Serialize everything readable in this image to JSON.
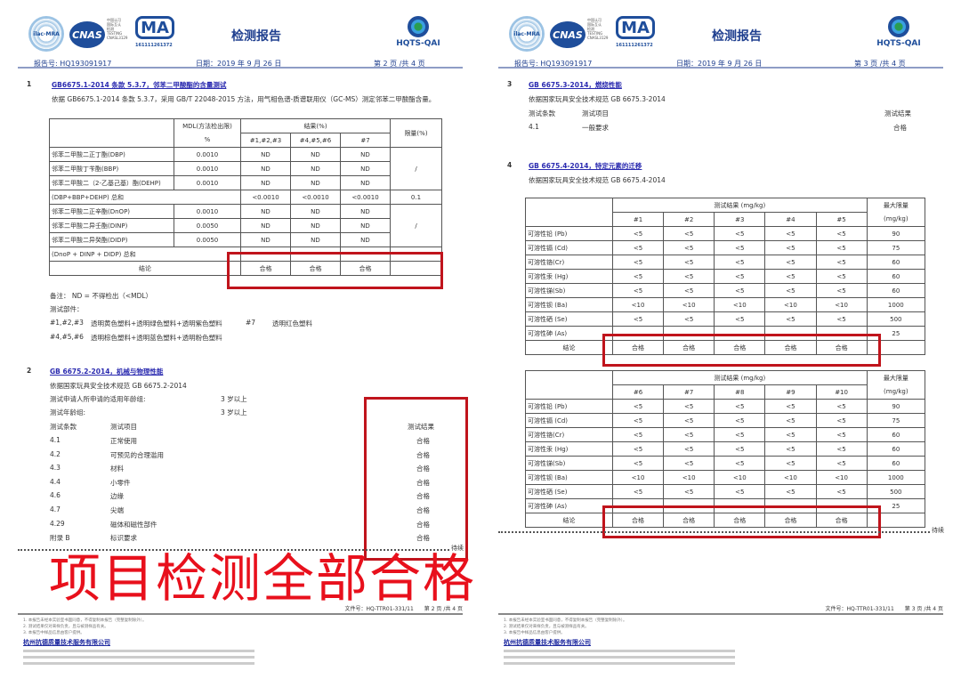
{
  "header": {
    "title": "检测报告",
    "cnas_text": "CNAS",
    "cnas_small": [
      "中国认可",
      "国际互认",
      "检测",
      "TESTING",
      "CNASL3129"
    ],
    "ma_text": "MA",
    "ma_number": "161111261372",
    "iaf_text": "ilac-MRA",
    "hqts_text": "HQTS-QAI",
    "report_no": "报告号: HQ193091917",
    "date": "日期：2019 年 9 月 26 日"
  },
  "page2": {
    "page_label": "第 2 页 /共 4 页",
    "sec1": {
      "num": "1",
      "title": "GB6675.1-2014  条款 5.3.7，邻苯二甲酸酯的含量测试",
      "desc": "依据 GB6675.1-2014 条款 5.3.7，采用 GB/T 22048-2015 方法，用气相色谱-质谱联用仪（GC-MS）测定邻苯二甲酸酯含量。",
      "table": {
        "h_mdl": "MDL(方法检出限)",
        "h_mdl_unit": "%",
        "h_result": "结果(%)",
        "h_limit": "限量(%)",
        "cols": [
          "#1,#2,#3",
          "#4,#5,#6",
          "#7"
        ],
        "rows": [
          {
            "name": "邻苯二甲酸二正丁酯(DBP)",
            "mdl": "0.0010",
            "v": [
              "ND",
              "ND",
              "ND"
            ]
          },
          {
            "name": "邻苯二甲酸丁苄酯(BBP)",
            "mdl": "0.0010",
            "v": [
              "ND",
              "ND",
              "ND"
            ]
          },
          {
            "name": "邻苯二甲酸二（2-乙基己基）酯(DEHP)",
            "mdl": "0.0010",
            "v": [
              "ND",
              "ND",
              "ND"
            ]
          },
          {
            "name": "(DBP+BBP+DEHP) 总和",
            "v": [
              "<0.0010",
              "<0.0010",
              "<0.0010"
            ],
            "limit": "0.1"
          },
          {
            "name": "邻苯二甲酸二正辛酯(DnOP)",
            "mdl": "0.0010",
            "v": [
              "ND",
              "ND",
              "ND"
            ]
          },
          {
            "name": "邻苯二甲酸二异壬酯(DINP)",
            "mdl": "0.0050",
            "v": [
              "ND",
              "ND",
              "ND"
            ]
          },
          {
            "name": "邻苯二甲酸二异癸酯(DIDP)",
            "mdl": "0.0050",
            "v": [
              "ND",
              "ND",
              "ND"
            ]
          },
          {
            "name": "(DnoP + DINP + DIDP) 总和",
            "v": [
              "",
              "",
              ""
            ],
            "limit": ""
          }
        ],
        "limit_a": "/",
        "limit_b": "/",
        "conclusion_label": "结论",
        "conclusion": [
          "合格",
          "合格",
          "合格"
        ]
      },
      "note": "备注：  ND = 不得检出（<MDL）",
      "parts_label": "测试部件：",
      "parts": [
        {
          "id": "#1,#2,#3",
          "desc": "透明黄色塑料+透明绿色塑料+透明紫色塑料",
          "id2": "#7",
          "desc2": "透明红色塑料"
        },
        {
          "id": "#4,#5,#6",
          "desc": "透明棕色塑料+透明蓝色塑料+透明粉色塑料"
        }
      ]
    },
    "sec2": {
      "num": "2",
      "title": "GB 6675.2-2014，机械与物理性能",
      "basis": "依据国家玩具安全技术规范 GB 6675.2-2014",
      "age_applied_label": "测试申请人所申请的适用年龄组:",
      "age_applied": "3 岁以上",
      "age_label": "测试年龄组:",
      "age": "3 岁以上",
      "h_clause": "测试条款",
      "h_item": "测试项目",
      "h_result": "测试结果",
      "rows": [
        [
          "4.1",
          "正常使用",
          "合格"
        ],
        [
          "4.2",
          "可预见的合理滥用",
          "合格"
        ],
        [
          "4.3",
          "材料",
          "合格"
        ],
        [
          "4.4",
          "小零件",
          "合格"
        ],
        [
          "4.6",
          "边缘",
          "合格"
        ],
        [
          "4.7",
          "尖端",
          "合格"
        ],
        [
          "4.29",
          "磁体和磁性部件",
          "合格"
        ],
        [
          "附录 B",
          "标识要求",
          "合格"
        ]
      ]
    },
    "continued": "待续",
    "overlay": "项目检测全部合格",
    "file_no": "文件号：HQ-TTR01-331/11",
    "foot_page": "第 2 页 /共 4 页"
  },
  "page3": {
    "page_label": "第 3 页 /共 4 页",
    "sec3": {
      "num": "3",
      "title": "GB 6675.3-2014，燃烧性能",
      "basis": "依据国家玩具安全技术规范 GB 6675.3-2014",
      "h_clause": "测试条款",
      "h_item": "测试项目",
      "h_result": "测试结果",
      "rows": [
        [
          "4.1",
          "一般要求",
          "合格"
        ]
      ]
    },
    "sec4": {
      "num": "4",
      "title": "GB 6675.4-2014，特定元素的迁移",
      "basis": "依据国家玩具安全技术规范 GB 6675.4-2014",
      "h_result": "测试结果 (mg/kg)",
      "h_limit": "最大限量",
      "h_limit_unit": "(mg/kg)",
      "conclusion_label": "结论",
      "elements": [
        "可溶性铅 (Pb)",
        "可溶性镉 (Cd)",
        "可溶性铬(Cr)",
        "可溶性汞 (Hg)",
        "可溶性锑(Sb)",
        "可溶性钡 (Ba)",
        "可溶性硒 (Se)",
        "可溶性砷 (As)"
      ],
      "limits": [
        "90",
        "75",
        "60",
        "60",
        "60",
        "1000",
        "500",
        "25"
      ],
      "tables": [
        {
          "cols": [
            "#1",
            "#2",
            "#3",
            "#4",
            "#5"
          ],
          "values": [
            [
              "<5",
              "<5",
              "<5",
              "<5",
              "<5"
            ],
            [
              "<5",
              "<5",
              "<5",
              "<5",
              "<5"
            ],
            [
              "<5",
              "<5",
              "<5",
              "<5",
              "<5"
            ],
            [
              "<5",
              "<5",
              "<5",
              "<5",
              "<5"
            ],
            [
              "<5",
              "<5",
              "<5",
              "<5",
              "<5"
            ],
            [
              "<10",
              "<10",
              "<10",
              "<10",
              "<10"
            ],
            [
              "<5",
              "<5",
              "<5",
              "<5",
              "<5"
            ],
            [
              "",
              "",
              "",
              "",
              ""
            ]
          ],
          "conclusion": [
            "合格",
            "合格",
            "合格",
            "合格",
            "合格"
          ]
        },
        {
          "cols": [
            "#6",
            "#7",
            "#8",
            "#9",
            "#10"
          ],
          "values": [
            [
              "<5",
              "<5",
              "<5",
              "<5",
              "<5"
            ],
            [
              "<5",
              "<5",
              "<5",
              "<5",
              "<5"
            ],
            [
              "<5",
              "<5",
              "<5",
              "<5",
              "<5"
            ],
            [
              "<5",
              "<5",
              "<5",
              "<5",
              "<5"
            ],
            [
              "<5",
              "<5",
              "<5",
              "<5",
              "<5"
            ],
            [
              "<10",
              "<10",
              "<10",
              "<10",
              "<10"
            ],
            [
              "<5",
              "<5",
              "<5",
              "<5",
              "<5"
            ],
            [
              "",
              "",
              "",
              "",
              ""
            ]
          ],
          "conclusion": [
            "合格",
            "合格",
            "合格",
            "合格",
            "合格"
          ]
        }
      ]
    },
    "continued": "待续",
    "file_no": "文件号：HQ-TTR01-331/11",
    "foot_page": "第 3 页 /共 4 页"
  },
  "footer": {
    "notes": [
      "1. 本报告未经本实验室书面同意，不得复制本报告（完整复制除外）。",
      "2. 测试结果仅对来样负责，且与被测样品有关。",
      "3. 本报告中样品信息由客户提供。"
    ],
    "company": "杭州抗德质量技术服务有限公司",
    "colors": {
      "accent_red": "#c0141c",
      "title_blue": "#1f3f8f"
    }
  }
}
